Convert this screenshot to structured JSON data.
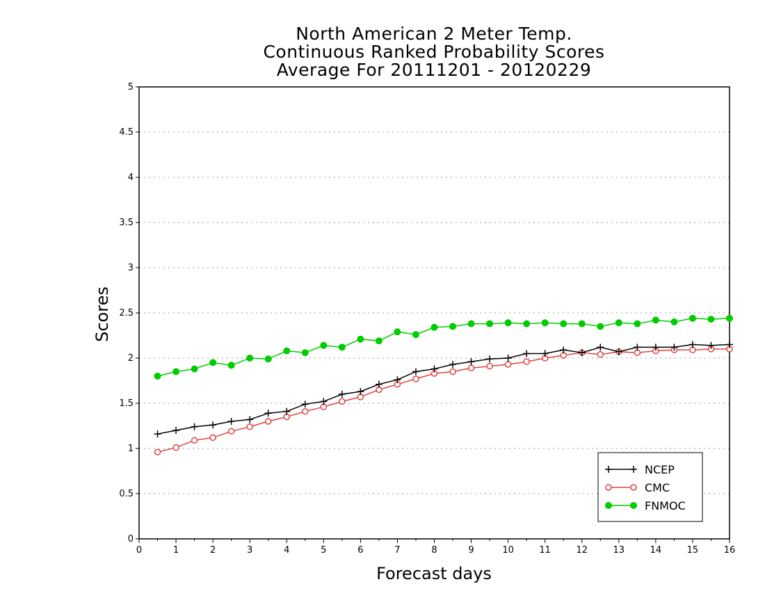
{
  "chart_data": {
    "type": "line",
    "title_lines": [
      "North American 2 Meter Temp.",
      "Continuous Ranked Probability Scores",
      "Average For 20111201 - 20120229"
    ],
    "xlabel": "Forecast days",
    "ylabel": "Scores",
    "xlim": [
      0,
      16
    ],
    "ylim": [
      0,
      5
    ],
    "x_ticks": [
      0,
      1,
      2,
      3,
      4,
      5,
      6,
      7,
      8,
      9,
      10,
      11,
      12,
      13,
      14,
      15,
      16
    ],
    "y_ticks": [
      0,
      0.5,
      1,
      1.5,
      2,
      2.5,
      3,
      3.5,
      4,
      4.5,
      5
    ],
    "y_tick_labels": [
      "0",
      "0.5",
      "1",
      "1.5",
      "2",
      "2.5",
      "3",
      "3.5",
      "4",
      "4.5",
      "5"
    ],
    "grid": "horizontal dotted",
    "legend_position": "bottom-right",
    "x": [
      0.5,
      1,
      1.5,
      2,
      2.5,
      3,
      3.5,
      4,
      4.5,
      5,
      5.5,
      6,
      6.5,
      7,
      7.5,
      8,
      8.5,
      9,
      9.5,
      10,
      10.5,
      11,
      11.5,
      12,
      12.5,
      13,
      13.5,
      14,
      14.5,
      15,
      15.5,
      16
    ],
    "series": [
      {
        "name": "NCEP",
        "color": "#000000",
        "marker": "plus",
        "values": [
          1.16,
          1.2,
          1.24,
          1.26,
          1.3,
          1.32,
          1.39,
          1.41,
          1.49,
          1.52,
          1.6,
          1.63,
          1.71,
          1.76,
          1.85,
          1.88,
          1.93,
          1.96,
          1.99,
          2.0,
          2.05,
          2.05,
          2.09,
          2.06,
          2.12,
          2.07,
          2.12,
          2.12,
          2.12,
          2.15,
          2.14,
          2.15
        ]
      },
      {
        "name": "CMC",
        "color": "#e04040",
        "marker": "open-circle",
        "values": [
          0.96,
          1.01,
          1.09,
          1.12,
          1.19,
          1.24,
          1.3,
          1.35,
          1.41,
          1.46,
          1.52,
          1.57,
          1.65,
          1.71,
          1.77,
          1.83,
          1.85,
          1.89,
          1.91,
          1.93,
          1.96,
          2.0,
          2.03,
          2.06,
          2.04,
          2.07,
          2.06,
          2.08,
          2.09,
          2.09,
          2.1,
          2.1
        ]
      },
      {
        "name": "FNMOC",
        "color": "#00cc00",
        "marker": "filled-circle",
        "values": [
          1.8,
          1.85,
          1.88,
          1.95,
          1.92,
          2.0,
          1.99,
          2.08,
          2.06,
          2.14,
          2.12,
          2.21,
          2.19,
          2.29,
          2.26,
          2.34,
          2.35,
          2.38,
          2.38,
          2.39,
          2.38,
          2.39,
          2.38,
          2.38,
          2.35,
          2.39,
          2.38,
          2.42,
          2.4,
          2.44,
          2.43,
          2.44
        ]
      }
    ]
  }
}
